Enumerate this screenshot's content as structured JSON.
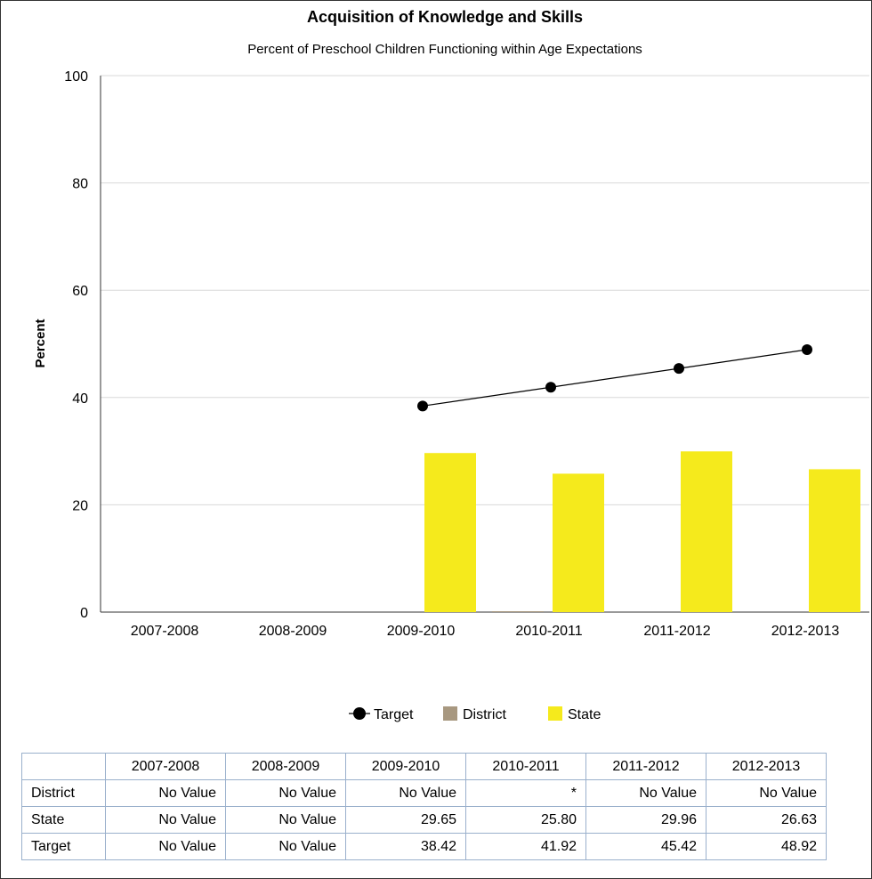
{
  "chart_data": {
    "type": "bar",
    "title": "Acquisition of Knowledge and Skills",
    "subtitle": "Percent of Preschool Children Functioning within Age Expectations",
    "ylabel": "Percent",
    "xlabel": "",
    "ylim": [
      0,
      100
    ],
    "yticks": [
      0,
      20,
      40,
      60,
      80,
      100
    ],
    "grid": true,
    "legend_position": "bottom",
    "categories": [
      "2007-2008",
      "2008-2009",
      "2009-2010",
      "2010-2011",
      "2011-2012",
      "2012-2013"
    ],
    "series": [
      {
        "name": "Target",
        "kind": "line",
        "color": "#000000",
        "values": [
          null,
          null,
          38.42,
          41.92,
          45.42,
          48.92
        ]
      },
      {
        "name": "District",
        "kind": "bar",
        "color": "#a89880",
        "values": [
          null,
          null,
          null,
          0,
          null,
          null
        ]
      },
      {
        "name": "State",
        "kind": "bar",
        "color": "#f5ea1c",
        "values": [
          null,
          null,
          29.65,
          25.8,
          29.96,
          26.63
        ]
      }
    ]
  },
  "table": {
    "columns": [
      "2007-2008",
      "2008-2009",
      "2009-2010",
      "2010-2011",
      "2011-2012",
      "2012-2013"
    ],
    "rows": [
      {
        "label": "District",
        "cells": [
          "No Value",
          "No Value",
          "No Value",
          "*",
          "No Value",
          "No Value"
        ]
      },
      {
        "label": "State",
        "cells": [
          "No Value",
          "No Value",
          "29.65",
          "25.80",
          "29.96",
          "26.63"
        ]
      },
      {
        "label": "Target",
        "cells": [
          "No Value",
          "No Value",
          "38.42",
          "41.92",
          "45.42",
          "48.92"
        ]
      }
    ]
  }
}
